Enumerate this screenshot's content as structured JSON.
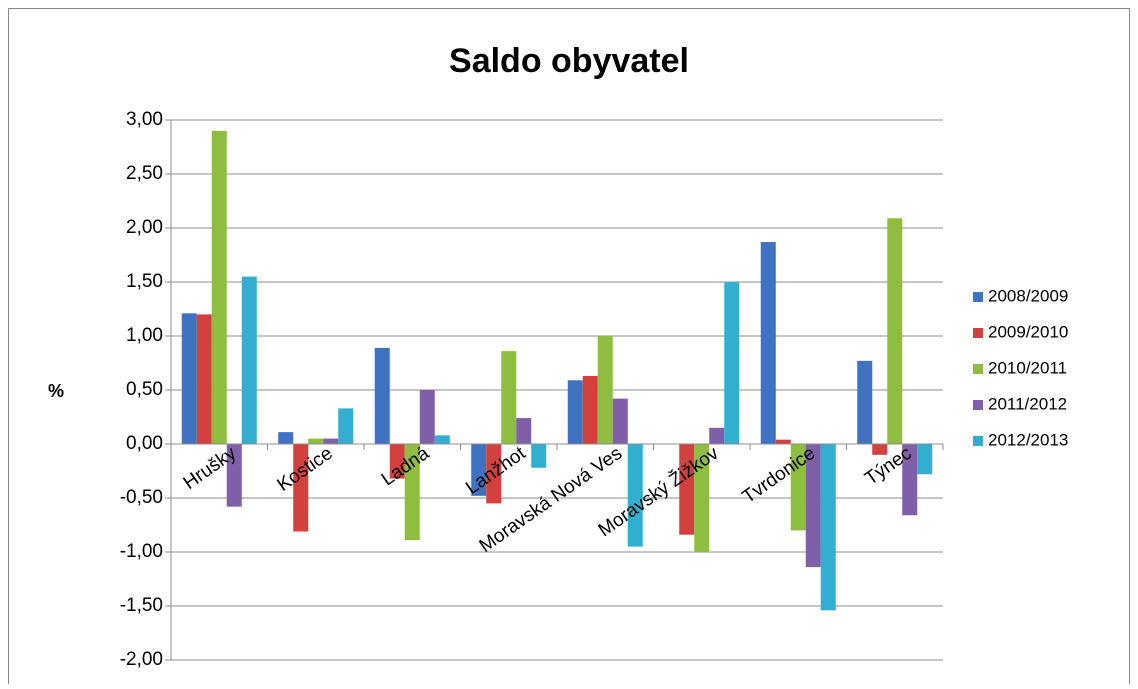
{
  "chart_data": {
    "type": "bar",
    "title": "Saldo obyvatel",
    "y_label": "%",
    "categories": [
      "Hrušky",
      "Kostice",
      "Ladná",
      "Lanžhot",
      "Moravská Nová Ves",
      "Moravský Žižkov",
      "Tvrdonice",
      "Týnec"
    ],
    "series": [
      {
        "name": "2008/2009",
        "color": "#3f72c0",
        "values": [
          1.21,
          0.11,
          0.89,
          -0.48,
          0.59,
          0.0,
          1.87,
          0.77
        ]
      },
      {
        "name": "2009/2010",
        "color": "#d2413d",
        "values": [
          1.2,
          -0.81,
          -0.32,
          -0.55,
          0.63,
          -0.84,
          0.04,
          -0.1
        ]
      },
      {
        "name": "2010/2011",
        "color": "#8fbd3f",
        "values": [
          2.9,
          0.05,
          -0.89,
          0.86,
          1.0,
          -1.0,
          -0.8,
          2.09
        ]
      },
      {
        "name": "2011/2012",
        "color": "#7f5fa8",
        "values": [
          -0.58,
          0.05,
          0.5,
          0.24,
          0.42,
          0.15,
          -1.14,
          -0.66
        ]
      },
      {
        "name": "2012/2013",
        "color": "#32aed0",
        "values": [
          1.55,
          0.33,
          0.08,
          -0.22,
          -0.95,
          1.5,
          -1.54,
          -0.28
        ]
      }
    ],
    "ylim": [
      -2,
      3
    ],
    "yticks": [
      {
        "value": -2,
        "label": "-2,00"
      },
      {
        "value": -1.5,
        "label": "-1,50"
      },
      {
        "value": -1,
        "label": "-1,00"
      },
      {
        "value": -0.5,
        "label": "-0,50"
      },
      {
        "value": 0,
        "label": "0,00"
      },
      {
        "value": 0.5,
        "label": "0,50"
      },
      {
        "value": 1,
        "label": "1,00"
      },
      {
        "value": 1.5,
        "label": "1,50"
      },
      {
        "value": 2,
        "label": "2,00"
      },
      {
        "value": 2.5,
        "label": "2,50"
      },
      {
        "value": 3,
        "label": "3,00"
      }
    ],
    "grid": true,
    "legend": "right"
  }
}
